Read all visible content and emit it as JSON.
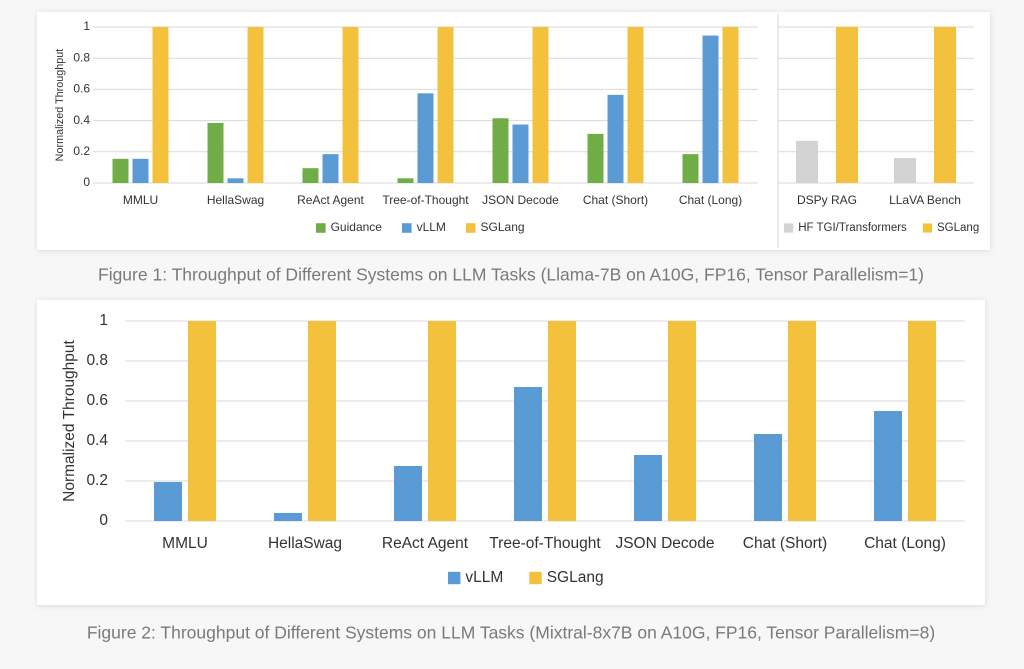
{
  "chart_data": [
    {
      "type": "bar",
      "y_label": "Normalized Throughput",
      "categories": [
        "MMLU",
        "HellaSwag",
        "ReAct Agent",
        "Tree-of-Thought",
        "JSON Decode",
        "Chat (Short)",
        "Chat (Long)"
      ],
      "series": [
        {
          "name": "Guidance",
          "color": "#70ad47",
          "values": [
            0.155,
            0.385,
            0.095,
            0.03,
            0.415,
            0.315,
            0.185
          ]
        },
        {
          "name": "vLLM",
          "color": "#5b9bd5",
          "values": [
            0.155,
            0.03,
            0.185,
            0.575,
            0.375,
            0.565,
            0.945
          ]
        },
        {
          "name": "SGLang",
          "color": "#f4c13d",
          "values": [
            1,
            1,
            1,
            1,
            1,
            1,
            1
          ]
        }
      ],
      "ylim": [
        0,
        1
      ],
      "yticks": [
        0,
        0.2,
        0.4,
        0.6,
        0.8,
        1
      ],
      "grid": true,
      "show_tick_labels": true,
      "caption": "Figure 1: Throughput of Different Systems on LLM Tasks (Llama-7B on A10G, FP16, Tensor Parallelism=1)"
    },
    {
      "type": "bar",
      "categories": [
        "DSPy RAG",
        "LLaVA Bench"
      ],
      "series": [
        {
          "name": "HF TGI/Transformers",
          "color": "#d3d3d3",
          "values": [
            0.27,
            0.16
          ]
        },
        {
          "name": "SGLang",
          "color": "#f4c13d",
          "values": [
            1,
            1
          ]
        }
      ],
      "ylim": [
        0,
        1
      ],
      "yticks": [
        0,
        0.2,
        0.4,
        0.6,
        0.8,
        1
      ],
      "grid": true,
      "show_tick_labels": false
    },
    {
      "type": "bar",
      "y_label": "Normalized Throughput",
      "categories": [
        "MMLU",
        "HellaSwag",
        "ReAct Agent",
        "Tree-of-Thought",
        "JSON Decode",
        "Chat (Short)",
        "Chat (Long)"
      ],
      "series": [
        {
          "name": "vLLM",
          "color": "#5b9bd5",
          "values": [
            0.195,
            0.04,
            0.275,
            0.67,
            0.33,
            0.435,
            0.55
          ]
        },
        {
          "name": "SGLang",
          "color": "#f4c13d",
          "values": [
            1,
            1,
            1,
            1,
            1,
            1,
            1
          ]
        }
      ],
      "ylim": [
        0,
        1
      ],
      "yticks": [
        0,
        0.2,
        0.4,
        0.6,
        0.8,
        1
      ],
      "grid": true,
      "show_tick_labels": true,
      "caption": "Figure 2: Throughput of Different Systems on LLM Tasks (Mixtral-8x7B on A10G, FP16, Tensor Parallelism=8)"
    }
  ]
}
